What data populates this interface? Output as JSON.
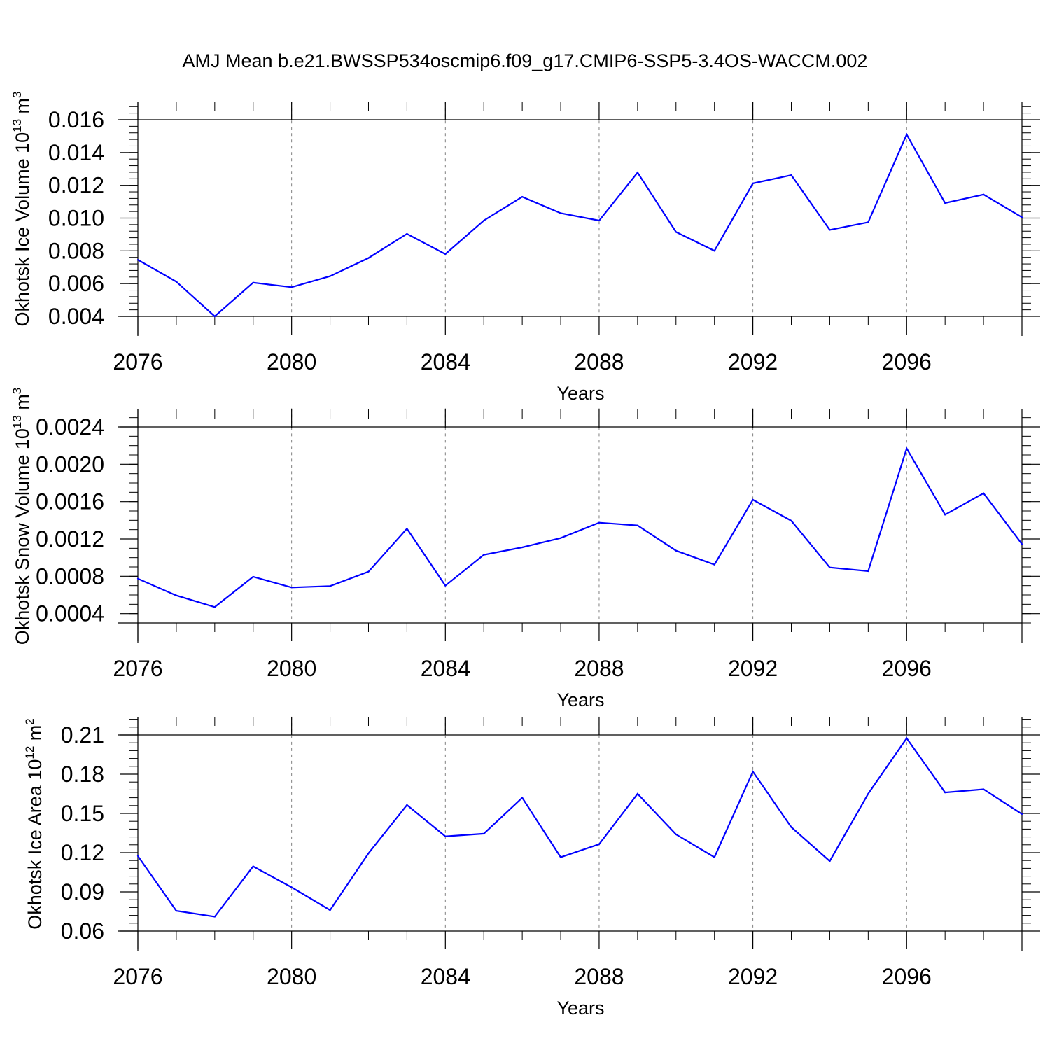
{
  "title": "AMJ Mean b.e21.BWSSP534oscmip6.f09_g17.CMIP6-SSP5-3.4OS-WACCM.002",
  "colors": {
    "line": "#0000ff",
    "axis": "#000000",
    "grid": "#808080"
  },
  "chart_data": [
    {
      "type": "line",
      "xlabel": "Years",
      "ylabel": {
        "prefix": "Okhotsk Ice Volume 10",
        "exp": "13",
        "unit": " m",
        "unit_exp": "3"
      },
      "xlim": [
        2076,
        2099
      ],
      "ylim": [
        0.004,
        0.016
      ],
      "x_ticks": [
        2076,
        2080,
        2084,
        2088,
        2092,
        2096
      ],
      "x_tick_labels": [
        "2076",
        "2080",
        "2084",
        "2088",
        "2092",
        "2096"
      ],
      "y_ticks": [
        0.004,
        0.006,
        0.008,
        0.01,
        0.012,
        0.014,
        0.016
      ],
      "y_tick_labels": [
        "0.004",
        "0.006",
        "0.008",
        "0.010",
        "0.012",
        "0.014",
        "0.016"
      ],
      "y_minor_step": 0.0004,
      "top_ext": 0.0011,
      "grid": "dashed vertical at major x ticks",
      "x": [
        2076,
        2077,
        2078,
        2079,
        2080,
        2081,
        2082,
        2083,
        2084,
        2085,
        2086,
        2087,
        2088,
        2089,
        2090,
        2091,
        2092,
        2093,
        2094,
        2095,
        2096,
        2097,
        2098,
        2099
      ],
      "values": [
        0.00745,
        0.00612,
        0.004,
        0.00606,
        0.00578,
        0.00645,
        0.00756,
        0.00904,
        0.0078,
        0.00985,
        0.0113,
        0.0103,
        0.00985,
        0.01278,
        0.00915,
        0.008,
        0.01212,
        0.01262,
        0.00928,
        0.00975,
        0.0151,
        0.01092,
        0.01144,
        0.01005
      ]
    },
    {
      "type": "line",
      "xlabel": "Years",
      "ylabel": {
        "prefix": "Okhotsk Snow Volume 10",
        "exp": "13",
        "unit": " m",
        "unit_exp": "3"
      },
      "xlim": [
        2076,
        2099
      ],
      "ylim": [
        0.0003,
        0.0024
      ],
      "x_ticks": [
        2076,
        2080,
        2084,
        2088,
        2092,
        2096
      ],
      "x_tick_labels": [
        "2076",
        "2080",
        "2084",
        "2088",
        "2092",
        "2096"
      ],
      "y_ticks": [
        0.0004,
        0.0008,
        0.0012,
        0.0016,
        0.002,
        0.0024
      ],
      "y_tick_labels": [
        "0.0004",
        "0.0008",
        "0.0012",
        "0.0016",
        "0.0020",
        "0.0024"
      ],
      "y_minor_step": 0.0001,
      "top_ext": 0.0002,
      "grid": "dashed vertical at major x ticks",
      "x": [
        2076,
        2077,
        2078,
        2079,
        2080,
        2081,
        2082,
        2083,
        2084,
        2085,
        2086,
        2087,
        2088,
        2089,
        2090,
        2091,
        2092,
        2093,
        2094,
        2095,
        2096,
        2097,
        2098,
        2099
      ],
      "values": [
        0.000775,
        0.000595,
        0.00047,
        0.000795,
        0.00068,
        0.000695,
        0.00085,
        0.00131,
        0.0007,
        0.00103,
        0.00111,
        0.00121,
        0.001375,
        0.001345,
        0.001075,
        0.000925,
        0.00162,
        0.001395,
        0.000895,
        0.000855,
        0.00217,
        0.00146,
        0.00169,
        0.001145
      ]
    },
    {
      "type": "line",
      "xlabel": "Years",
      "ylabel": {
        "prefix": "Okhotsk Ice Area 10",
        "exp": "12",
        "unit": " m",
        "unit_exp": "2"
      },
      "xlim": [
        2076,
        2099
      ],
      "ylim": [
        0.06,
        0.21
      ],
      "x_ticks": [
        2076,
        2080,
        2084,
        2088,
        2092,
        2096
      ],
      "x_tick_labels": [
        "2076",
        "2080",
        "2084",
        "2088",
        "2092",
        "2096"
      ],
      "y_ticks": [
        0.06,
        0.09,
        0.12,
        0.15,
        0.18,
        0.21
      ],
      "y_tick_labels": [
        "0.06",
        "0.09",
        "0.12",
        "0.15",
        "0.18",
        "0.21"
      ],
      "y_minor_step": 0.006,
      "top_ext": 0.014,
      "grid": "dashed vertical at major x ticks",
      "x": [
        2076,
        2077,
        2078,
        2079,
        2080,
        2081,
        2082,
        2083,
        2084,
        2085,
        2086,
        2087,
        2088,
        2089,
        2090,
        2091,
        2092,
        2093,
        2094,
        2095,
        2096,
        2097,
        2098,
        2099
      ],
      "values": [
        0.1175,
        0.0755,
        0.071,
        0.1095,
        0.0935,
        0.076,
        0.1195,
        0.1565,
        0.1325,
        0.1345,
        0.162,
        0.1165,
        0.1265,
        0.165,
        0.134,
        0.1165,
        0.182,
        0.1395,
        0.1135,
        0.165,
        0.2075,
        0.166,
        0.1685,
        0.1495
      ]
    }
  ]
}
